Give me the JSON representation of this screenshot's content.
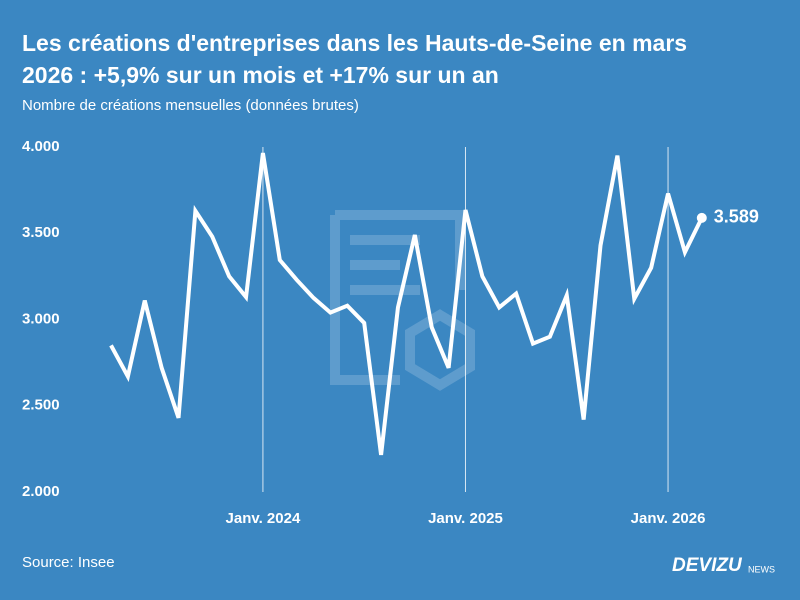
{
  "chart_data": {
    "type": "line",
    "title": [
      "Les créations d'entreprises dans les Hauts-de-Seine en mars",
      "2026 : +5,9% sur un mois et +17% sur un an"
    ],
    "subtitle": "Nombre de créations mensuelles (données brutes)",
    "categories": [
      null,
      null,
      null,
      null,
      null,
      null,
      null,
      null,
      null,
      "Janv. 2024",
      null,
      null,
      null,
      null,
      null,
      null,
      null,
      null,
      null,
      null,
      null,
      "Janv. 2025",
      null,
      null,
      null,
      null,
      null,
      null,
      null,
      null,
      null,
      null,
      null,
      "Janv. 2026",
      null,
      null
    ],
    "values": [
      2850,
      2670,
      3110,
      2720,
      2430,
      3630,
      3480,
      3250,
      3130,
      3965,
      3345,
      3230,
      3125,
      3040,
      3080,
      2980,
      2215,
      3070,
      3490,
      2955,
      2720,
      3635,
      3250,
      3070,
      3150,
      2860,
      2900,
      3140,
      2420,
      3430,
      3950,
      3120,
      3300,
      3730,
      3390,
      3589
    ],
    "value_labels": [
      null,
      null,
      null,
      null,
      null,
      null,
      null,
      null,
      null,
      null,
      null,
      null,
      null,
      null,
      null,
      null,
      null,
      null,
      null,
      null,
      null,
      null,
      null,
      null,
      null,
      null,
      null,
      null,
      null,
      null,
      null,
      null,
      null,
      null,
      null,
      "3.589"
    ],
    "color": "#ffffff",
    "ylim": [
      2000,
      4000
    ],
    "yticks": [
      {
        "value": 2000,
        "label": "2.000"
      },
      {
        "value": 2500,
        "label": "2.500"
      },
      {
        "value": 3000,
        "label": "3.000"
      },
      {
        "value": 3500,
        "label": "3.500"
      },
      {
        "value": 4000,
        "label": "4.000"
      }
    ],
    "source": "Source: Insee",
    "brand": "DEVIZU",
    "brand_sub": "NEWS"
  }
}
